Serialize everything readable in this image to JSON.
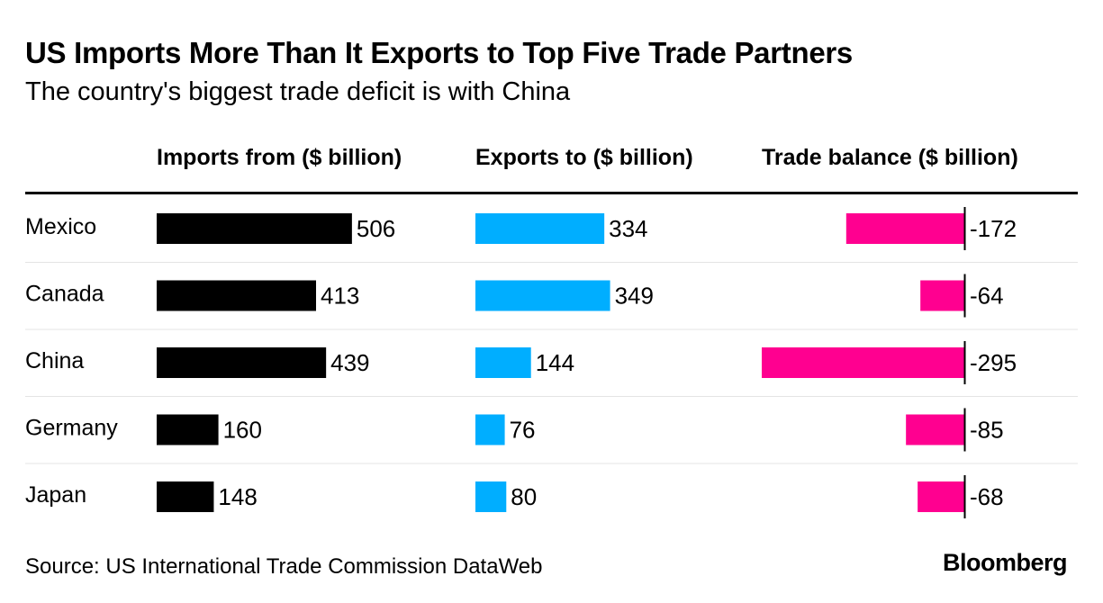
{
  "title": "US Imports More Than It Exports to Top Five Trade Partners",
  "subtitle": "The country's biggest trade deficit is with China",
  "source": "Source: US International Trade Commission DataWeb",
  "brand": "Bloomberg",
  "colors": {
    "imports": "#000000",
    "exports": "#00aeff",
    "balance": "#ff0090",
    "grid": "#e4e4e4",
    "rule": "#000000"
  },
  "chart_data": {
    "type": "bar",
    "title": "US Imports More Than It Exports to Top Five Trade Partners",
    "subtitle": "The country's biggest trade deficit is with China",
    "categories": [
      "Mexico",
      "Canada",
      "China",
      "Germany",
      "Japan"
    ],
    "series": [
      {
        "name": "Imports from ($ billion)",
        "key": "imports",
        "values": [
          506,
          413,
          439,
          160,
          148
        ]
      },
      {
        "name": "Exports to ($ billion)",
        "key": "exports",
        "values": [
          334,
          349,
          144,
          76,
          80
        ]
      },
      {
        "name": "Trade balance ($ billion)",
        "key": "balance",
        "values": [
          -172,
          -64,
          -295,
          -85,
          -68
        ]
      }
    ]
  }
}
